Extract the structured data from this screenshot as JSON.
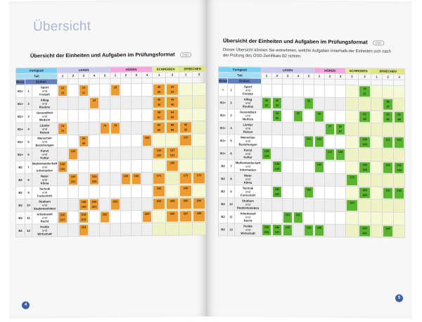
{
  "left_page": {
    "title": "Übersicht",
    "section_title": "Übersicht der Einheiten und Aufgaben im Prüfungsformat",
    "section_tag": "ÖSD",
    "page_number": "4"
  },
  "right_page": {
    "section_title": "Übersicht der Einheiten und Aufgaben im Prüfungsformat",
    "section_tag": "ÖSD",
    "intro": "Dieser Übersicht können Sie entnehmen, welche Aufgaben innerhalb der Einheiten sich nach der Prüfung des ÖSD-Zertifikats B2 richten.",
    "page_number": "5"
  },
  "table_headers": {
    "fertigkeit": "Fertigkeit",
    "teil": "Teil",
    "niveau": "Niveau",
    "einheit": "Einheit",
    "lesen": "LESEN",
    "hoeren": "HÖREN",
    "schreiben": "SCHREIBEN",
    "sprechen": "SPRECHEN"
  },
  "left_table": {
    "teil_numbers": [
      "1",
      "2",
      "3",
      "4",
      "5",
      "1",
      "2",
      "3",
      "4",
      "1",
      "2",
      "1",
      "2"
    ],
    "rows": [
      {
        "niveau": "B1+",
        "num": "1",
        "unit": [
          "Sport",
          "und",
          "Freizeit"
        ],
        "cells": [
          "12\n13",
          "",
          "19\n11",
          "",
          "",
          "15",
          "",
          "",
          "",
          "32\n29",
          "24\n24",
          "",
          ""
        ]
      },
      {
        "niveau": "B1+",
        "num": "2",
        "unit": [
          "Alltag",
          "und",
          "Routine"
        ],
        "cells": [
          "",
          "",
          "",
          "34",
          "",
          "",
          "",
          "",
          "",
          "40\n43",
          "43\n46",
          "",
          ""
        ]
      },
      {
        "niveau": "B1+",
        "num": "3",
        "unit": [
          "Gesundheit",
          "und",
          "Medizin"
        ],
        "cells": [
          "",
          "",
          "",
          "",
          "",
          "",
          "",
          "",
          "",
          "58\n61",
          "64\n60",
          "",
          ""
        ]
      },
      {
        "niveau": "B1+",
        "num": "4",
        "unit": [
          "Länder",
          "und",
          "Reisen"
        ],
        "cells": [
          "74\n75",
          "",
          "",
          "",
          "76",
          "78",
          "",
          "",
          "",
          "83\n82",
          "88\n89",
          "90\n92",
          ""
        ]
      },
      {
        "niveau": "B1+",
        "num": "5",
        "unit": [
          "Menschen",
          "und",
          "Beziehungen"
        ],
        "cells": [
          "",
          "",
          "99\n99",
          "",
          "",
          "",
          "",
          "",
          "105",
          "",
          "",
          "110",
          ""
        ]
      },
      {
        "niveau": "B1+",
        "num": "6",
        "unit": [
          "Kunst",
          "und",
          "Kultur"
        ],
        "cells": [
          "",
          "120",
          "",
          "",
          "",
          "",
          "",
          "",
          "",
          "124\n127",
          "127\n131",
          "",
          ""
        ]
      },
      {
        "niveau": "B2",
        "num": "7",
        "unit": [
          "Medienlandschaft",
          "und",
          "Information"
        ],
        "cells": [
          "140\n141",
          "",
          "",
          "",
          "",
          "",
          "",
          "",
          "",
          "",
          "150",
          "",
          ""
        ]
      },
      {
        "niveau": "B2",
        "num": "8",
        "unit": [
          "Natur",
          "und",
          "Klima"
        ],
        "cells": [
          "",
          "160\n161",
          "",
          "163\n163",
          "",
          "",
          "165",
          "166",
          "",
          "171",
          "",
          "173",
          "174"
        ]
      },
      {
        "niveau": "B2",
        "num": "9",
        "unit": [
          "Technik",
          "und",
          "Fortschritt"
        ],
        "cells": [
          "",
          "",
          "",
          "",
          "",
          "",
          "",
          "",
          "",
          "183",
          "",
          "190",
          ""
        ]
      },
      {
        "niveau": "B2",
        "num": "10",
        "unit": [
          "Studium",
          "und",
          "Studentenleben"
        ],
        "cells": [
          "",
          "",
          "198\n199",
          "200\n201",
          "",
          "202",
          "",
          "",
          "",
          "203",
          "209",
          "205",
          "206"
        ]
      },
      {
        "niveau": "B2",
        "num": "11",
        "unit": [
          "Arbeitswelt",
          "und",
          "Recht"
        ],
        "cells": [
          "216\n217",
          "",
          "218\n219",
          "",
          "220",
          "",
          "",
          "",
          "223",
          "",
          "226",
          "227",
          "228"
        ]
      },
      {
        "niveau": "B2",
        "num": "12",
        "unit": [
          "Politik",
          "und",
          "Wirtschaft"
        ],
        "cells": [
          "",
          "",
          "234",
          "",
          "",
          "",
          "",
          "",
          "",
          "",
          "",
          "",
          ""
        ]
      }
    ]
  },
  "right_table": {
    "teil_numbers": [
      "1",
      "2",
      "3",
      "4",
      "5",
      "1",
      "2",
      "3",
      "1",
      "2",
      "1",
      "2",
      "3"
    ],
    "rows": [
      {
        "niveau": "+",
        "num": "1",
        "unit": [
          "Sport",
          "und",
          "Freizeit"
        ],
        "cells": [
          "",
          "",
          "",
          "",
          "",
          "",
          "",
          "",
          "",
          "19\n21",
          "",
          "",
          ""
        ]
      },
      {
        "niveau": "B1+",
        "num": "2",
        "unit": [
          "Alltag",
          "und",
          "Routine"
        ],
        "cells": [
          "30\n31",
          "32\n33",
          "",
          "",
          "35",
          "",
          "",
          "",
          "",
          "",
          "",
          "46\n47",
          ""
        ]
      },
      {
        "niveau": "B1+",
        "num": "3",
        "unit": [
          "Gesundheit",
          "und",
          "Medizin"
        ],
        "cells": [
          "",
          "54\n55",
          "",
          "55",
          "",
          "56",
          "",
          "",
          "",
          "62\n64",
          "",
          "65\n65",
          "66\n68"
        ]
      },
      {
        "niveau": "B1+",
        "num": "4",
        "unit": [
          "Länder",
          "und",
          "Reisen"
        ],
        "cells": [
          "",
          "",
          "",
          "",
          "",
          "",
          "77",
          "86\n87",
          "",
          "",
          "",
          "",
          ""
        ]
      },
      {
        "niveau": "B1+",
        "num": "5",
        "unit": [
          "Menschen",
          "und",
          "Beziehungen"
        ],
        "cells": [
          "",
          "",
          "",
          "",
          "101",
          "102",
          "",
          "",
          "",
          "106\n109",
          "",
          "111",
          "113"
        ]
      },
      {
        "niveau": "B1+",
        "num": "6",
        "unit": [
          "Kunst",
          "und",
          "Kultur"
        ],
        "cells": [
          "118\n119",
          "",
          "",
          "",
          "",
          "",
          "121",
          "128",
          "",
          "",
          "",
          "",
          ""
        ]
      },
      {
        "niveau": "B2",
        "num": "7",
        "unit": [
          "Medienlandschaft",
          "und",
          "Information"
        ],
        "cells": [
          "",
          "138\n139",
          "",
          "",
          "",
          "142",
          "",
          "",
          "",
          "146\n149",
          "",
          "151",
          "152\n154"
        ]
      },
      {
        "niveau": "B2",
        "num": "8",
        "unit": [
          "Natur",
          "und",
          "Klima"
        ],
        "cells": [
          "",
          "",
          "",
          "",
          "",
          "",
          "",
          "",
          "172",
          "",
          "",
          "",
          ""
        ]
      },
      {
        "niveau": "B2",
        "num": "9",
        "unit": [
          "Technik",
          "und",
          "Fortschritt"
        ],
        "cells": [
          "",
          "180\n181",
          "",
          "",
          "182",
          "",
          "",
          "",
          "",
          "189\n189",
          "",
          "191",
          "192"
        ]
      },
      {
        "niveau": "B2",
        "num": "10",
        "unit": [
          "Studium",
          "und",
          "Studentenleben"
        ],
        "cells": [
          "",
          "",
          "",
          "",
          "",
          "",
          "",
          "",
          "210",
          "",
          "",
          "",
          ""
        ]
      },
      {
        "niveau": "B2",
        "num": "11",
        "unit": [
          "Arbeitswelt",
          "und",
          "Recht"
        ],
        "cells": [
          "",
          "",
          "221",
          "222",
          "",
          "",
          "",
          "",
          "",
          "",
          "",
          "",
          ""
        ]
      },
      {
        "niveau": "B2",
        "num": "12",
        "unit": [
          "Politik",
          "und",
          "Wirtschaft"
        ],
        "cells": [
          "232\n233",
          "236\n237",
          "235",
          "",
          "239",
          "238",
          "",
          "",
          "",
          "240\n241",
          "",
          "242",
          ""
        ]
      }
    ]
  },
  "colors": {
    "left_accent": "#ec9a32",
    "right_accent": "#5bb332",
    "header_blue": "#5f7fbf",
    "page_number_bg": "#3e5fa6"
  }
}
